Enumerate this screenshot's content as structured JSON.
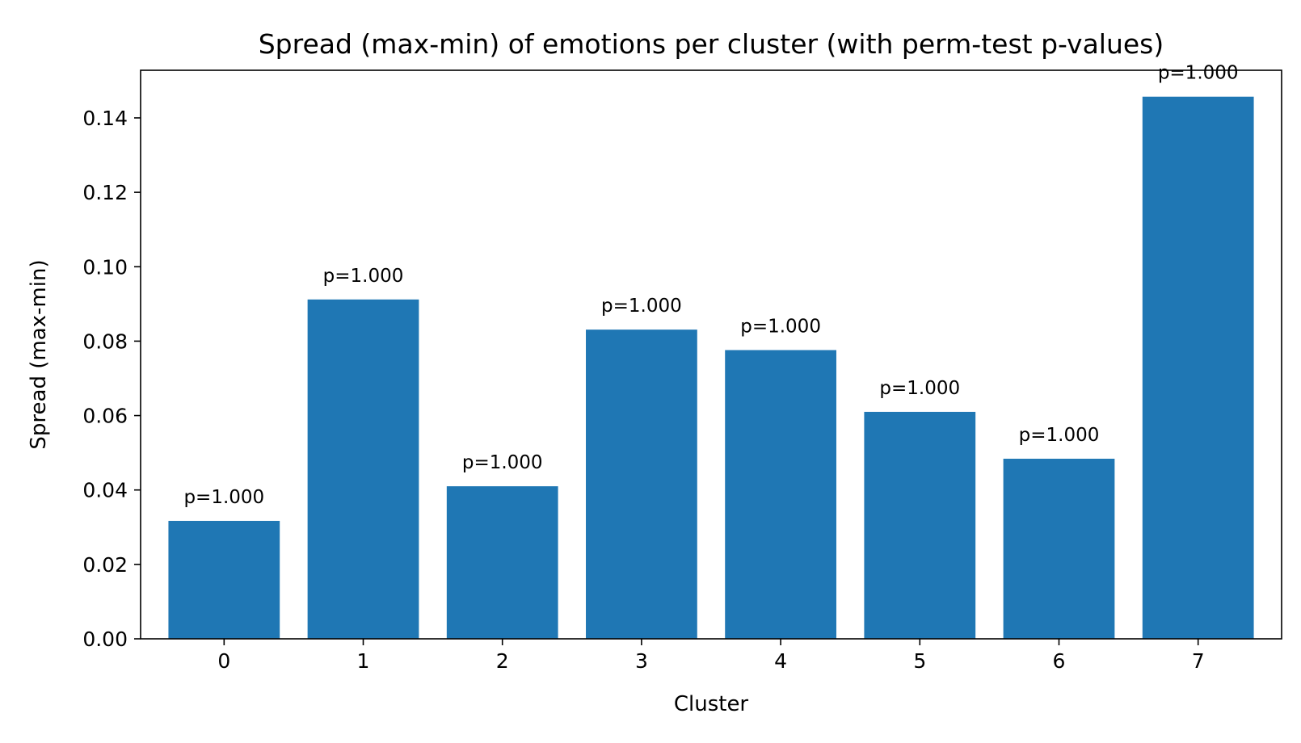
{
  "chart_data": {
    "type": "bar",
    "title": "Spread (max-min) of emotions per cluster (with perm-test p-values)",
    "xlabel": "Cluster",
    "ylabel": "Spread (max-min)",
    "categories": [
      "0",
      "1",
      "2",
      "3",
      "4",
      "5",
      "6",
      "7"
    ],
    "values": [
      0.0317,
      0.0912,
      0.041,
      0.0831,
      0.0776,
      0.061,
      0.0484,
      0.1457
    ],
    "bar_labels": [
      "p=1.000",
      "p=1.000",
      "p=1.000",
      "p=1.000",
      "p=1.000",
      "p=1.000",
      "p=1.000",
      "p=1.000"
    ],
    "ylim": [
      0,
      0.1528
    ],
    "yticks": [
      0.0,
      0.02,
      0.04,
      0.06,
      0.08,
      0.1,
      0.12,
      0.14
    ],
    "ytick_labels": [
      "0.00",
      "0.02",
      "0.04",
      "0.06",
      "0.08",
      "0.10",
      "0.12",
      "0.14"
    ],
    "grid": false,
    "bar_color": "#1f77b4"
  }
}
